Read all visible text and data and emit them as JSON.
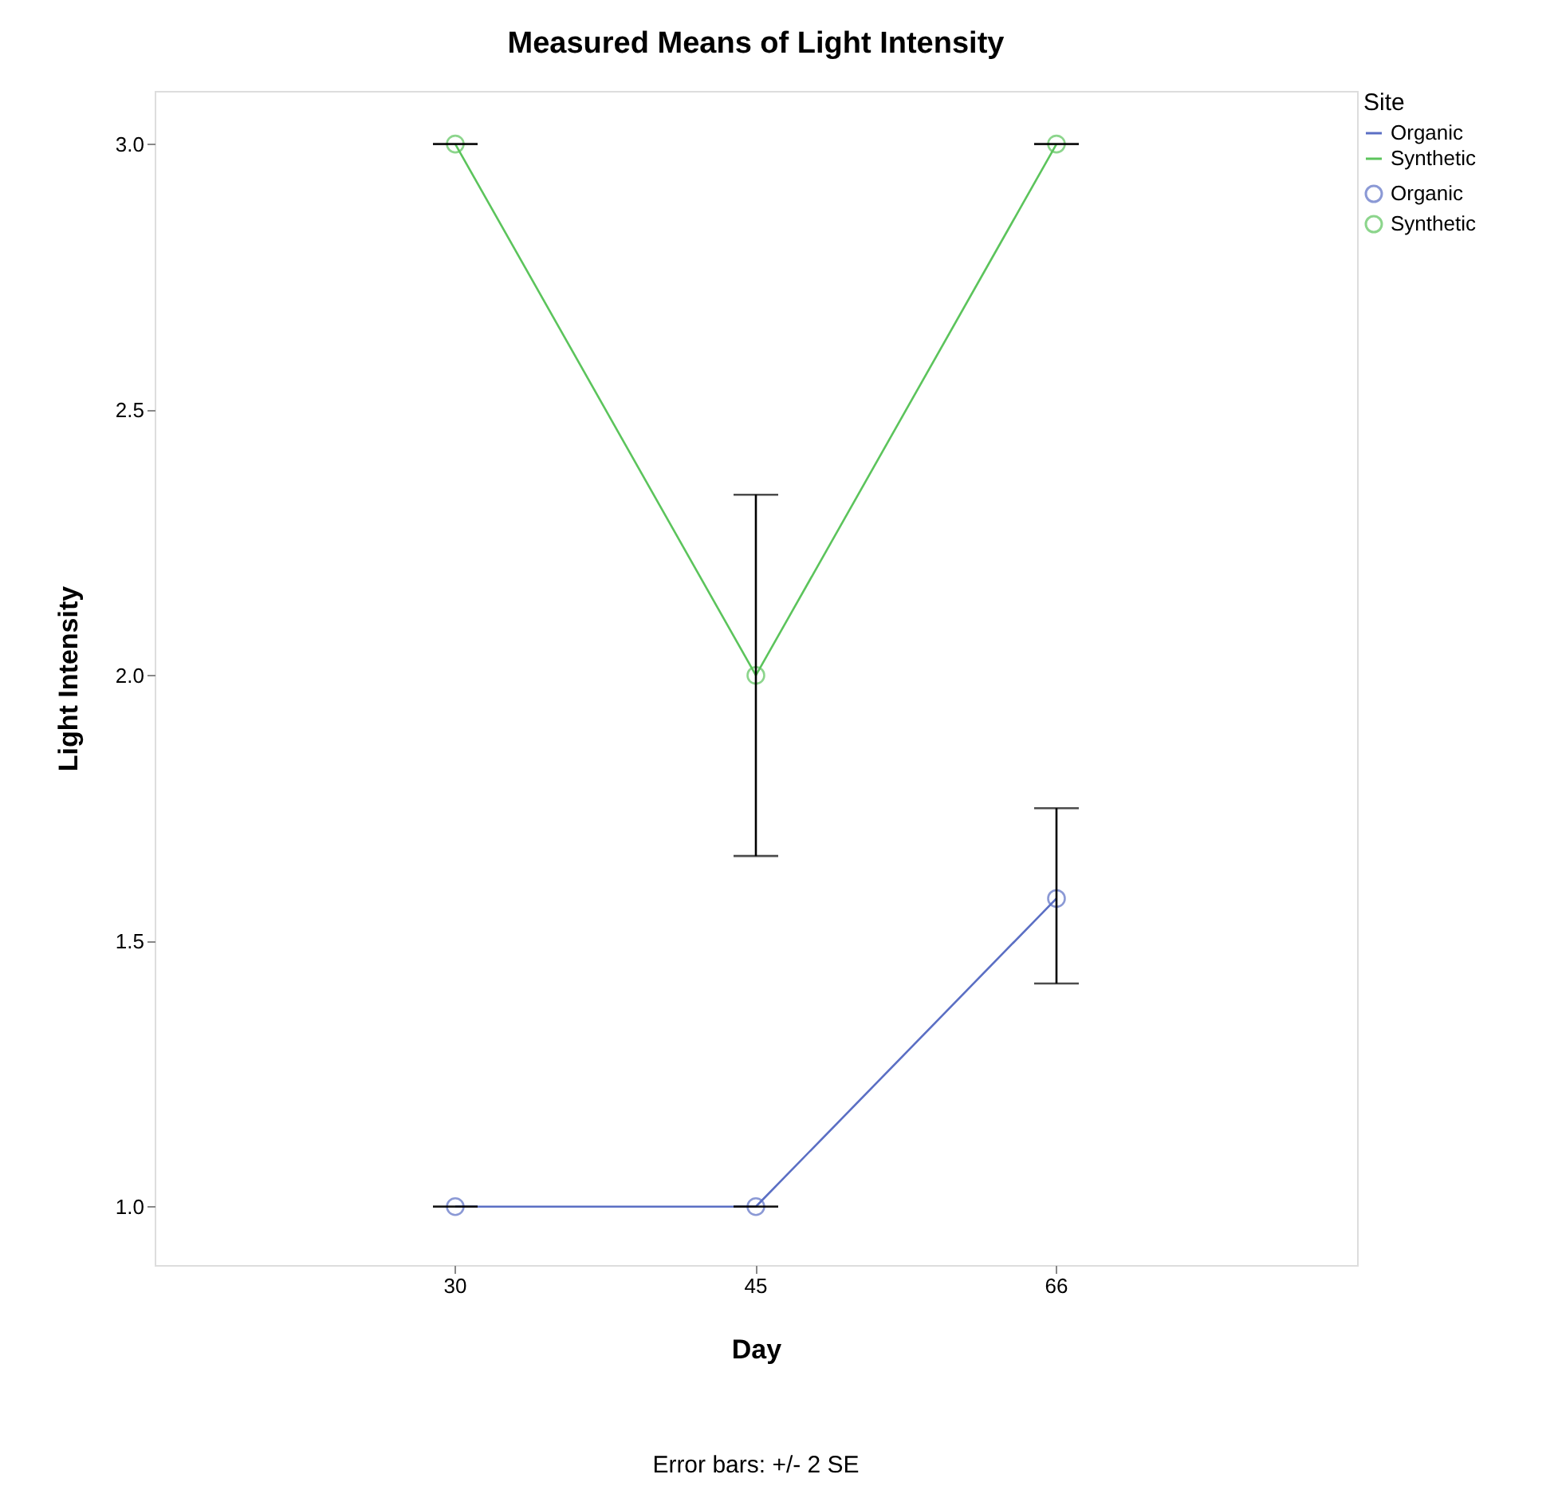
{
  "chart_data": {
    "type": "line",
    "title": "Measured Means of Light Intensity",
    "xlabel": "Day",
    "ylabel": "Light Intensity",
    "legend_title": "Site",
    "legend": "top right",
    "marker": "circle",
    "categories": [
      "30",
      "45",
      "66"
    ],
    "series": [
      {
        "name": "Organic",
        "color": "#5b6fc4",
        "values": [
          1.0,
          1.0,
          1.58
        ],
        "errors": [
          0,
          0,
          [
            1.42,
            1.75
          ]
        ]
      },
      {
        "name": "Synthetic",
        "color": "#5cc45c",
        "values": [
          3.0,
          2.0,
          3.0
        ],
        "errors": [
          0,
          [
            1.66,
            2.34
          ],
          0
        ]
      }
    ],
    "ylim": [
      0.89,
      3.1
    ],
    "yticks": [
      {
        "value": 1,
        "label": "1.0"
      },
      {
        "value": 1.5,
        "label": "1.5"
      },
      {
        "value": 2,
        "label": "2.0"
      },
      {
        "value": 2.5,
        "label": "2.5"
      },
      {
        "value": 3,
        "label": "3.0"
      }
    ],
    "annotations": [
      "Error bars: +/- 2 SE"
    ]
  }
}
